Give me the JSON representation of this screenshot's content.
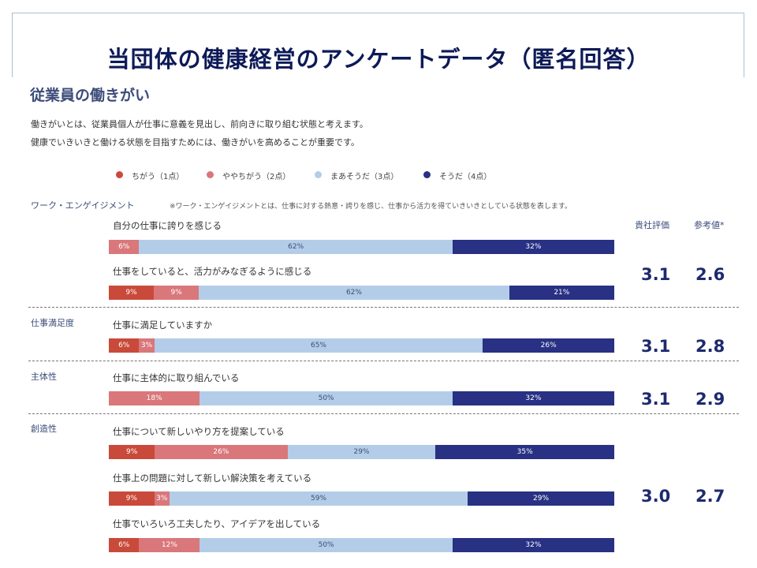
{
  "title": "当団体の健康経営のアンケートデータ（匿名回答）",
  "section_title": "従業員の働きがい",
  "description": [
    "働きがいとは、従業員個人が仕事に意義を見出し、前向きに取り組む状態と考えます。",
    "健康でいきいきと働ける状態を目指すためには、働きがいを高めることが重要です。"
  ],
  "legend": [
    {
      "label": "ちがう（1点）",
      "color": "#c94a3a"
    },
    {
      "label": "ややちがう（2点）",
      "color": "#d9777b"
    },
    {
      "label": "まあそうだ（3点）",
      "color": "#b3cde9"
    },
    {
      "label": "そうだ（4点）",
      "color": "#283183"
    }
  ],
  "headers": {
    "company": "貴社評価",
    "reference": "参考値*"
  },
  "categories": [
    {
      "label": "ワーク・エンゲイジメント",
      "note": "※ワーク・エンゲイジメントとは、仕事に対する熱意・誇りを感じ、仕事から活力を得ていきいきとしている状態を表します。",
      "company_score": "3.1",
      "reference_score": "2.6"
    },
    {
      "label": "仕事満足度",
      "company_score": "3.1",
      "reference_score": "2.8"
    },
    {
      "label": "主体性",
      "company_score": "3.1",
      "reference_score": "2.9"
    },
    {
      "label": "創造性",
      "company_score": "3.0",
      "reference_score": "2.7"
    }
  ],
  "chart_data": {
    "type": "bar",
    "orientation": "horizontal-stacked-100",
    "series_names": [
      "ちがう（1点）",
      "ややちがう（2点）",
      "まあそうだ（3点）",
      "そうだ（4点）"
    ],
    "items": [
      {
        "category": "ワーク・エンゲイジメント",
        "question": "自分の仕事に誇りを感じる",
        "values": [
          0,
          6,
          62,
          32
        ]
      },
      {
        "category": "ワーク・エンゲイジメント",
        "question": "仕事をしていると、活力がみなぎるように感じる",
        "values": [
          9,
          9,
          62,
          21
        ]
      },
      {
        "category": "仕事満足度",
        "question": "仕事に満足していますか",
        "values": [
          6,
          3,
          65,
          26
        ]
      },
      {
        "category": "主体性",
        "question": "仕事に主体的に取り組んでいる",
        "values": [
          0,
          18,
          50,
          32
        ]
      },
      {
        "category": "創造性",
        "question": "仕事について新しいやり方を提案している",
        "values": [
          9,
          26,
          29,
          35
        ]
      },
      {
        "category": "創造性",
        "question": "仕事上の問題に対して新しい解決策を考えている",
        "values": [
          9,
          3,
          59,
          29
        ]
      },
      {
        "category": "創造性",
        "question": "仕事でいろいろ工夫したり、アイデアを出している",
        "values": [
          6,
          12,
          50,
          32
        ]
      }
    ]
  }
}
